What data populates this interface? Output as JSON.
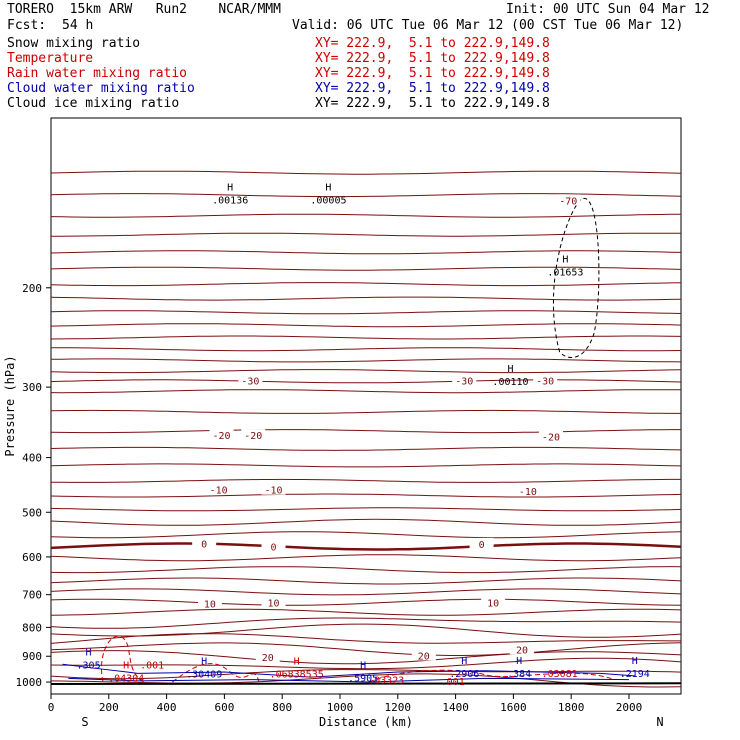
{
  "header": {
    "model": "TORERO  15km ARW   Run2    NCAR/MMM",
    "init": "Init: 00 UTC Sun 04 Mar 12",
    "fcst_label": "Fcst:",
    "fcst_value": "54 h",
    "valid": "Valid: 06 UTC Tue 06 Mar 12 (00 CST Tue 06 Mar 12)"
  },
  "fields": [
    {
      "name": "Snow mixing ratio",
      "xy": "XY= 222.9,  5.1 to 222.9,149.8",
      "color": "#000000"
    },
    {
      "name": "Temperature",
      "xy": "XY= 222.9,  5.1 to 222.9,149.8",
      "color": "#cc0000"
    },
    {
      "name": "Rain water mixing ratio",
      "xy": "XY= 222.9,  5.1 to 222.9,149.8",
      "color": "#cc0000"
    },
    {
      "name": "Cloud water mixing ratio",
      "xy": "XY= 222.9,  5.1 to 222.9,149.8",
      "color": "#0000aa"
    },
    {
      "name": "Cloud ice mixing ratio",
      "xy": "XY= 222.9,  5.1 to 222.9,149.8",
      "color": "#000000"
    }
  ],
  "chart_data": {
    "type": "line",
    "xlabel": "Distance (km)",
    "ylabel": "Pressure (hPa)",
    "xlim": [
      0,
      2180
    ],
    "ylim": [
      1050,
      100
    ],
    "y_scale": "log",
    "x_ticks": [
      0,
      200,
      400,
      600,
      800,
      1000,
      1200,
      1400,
      1600,
      1800,
      2000
    ],
    "y_ticks": [
      200,
      300,
      400,
      500,
      600,
      700,
      800,
      900,
      1000
    ],
    "endpoints": {
      "left": "S",
      "right": "N"
    },
    "temperature_contours_c": [
      -70,
      -30,
      -20,
      -10,
      0,
      10,
      20
    ],
    "temperature_labels": [
      {
        "text": "-70",
        "x": 1790,
        "p": 140
      },
      {
        "text": "-30",
        "x": 690,
        "p": 292
      },
      {
        "text": "-30",
        "x": 1430,
        "p": 292
      },
      {
        "text": "-30",
        "x": 1710,
        "p": 292
      },
      {
        "text": "-20",
        "x": 590,
        "p": 365
      },
      {
        "text": "-20",
        "x": 700,
        "p": 365
      },
      {
        "text": "-20",
        "x": 1730,
        "p": 367
      },
      {
        "text": "-10",
        "x": 580,
        "p": 456
      },
      {
        "text": "-10",
        "x": 770,
        "p": 456
      },
      {
        "text": "-10",
        "x": 1650,
        "p": 458
      },
      {
        "text": "0",
        "x": 530,
        "p": 568
      },
      {
        "text": "0",
        "x": 770,
        "p": 575
      },
      {
        "text": "0",
        "x": 1490,
        "p": 569
      },
      {
        "text": "10",
        "x": 550,
        "p": 726
      },
      {
        "text": "10",
        "x": 770,
        "p": 722
      },
      {
        "text": "10",
        "x": 1530,
        "p": 723
      },
      {
        "text": "20",
        "x": 750,
        "p": 903
      },
      {
        "text": "20",
        "x": 1290,
        "p": 897
      },
      {
        "text": "20",
        "x": 1630,
        "p": 875
      }
    ],
    "maxima_labels": [
      {
        "text": "H",
        "value": ".00136",
        "x": 620,
        "p": 140,
        "color": "#000000"
      },
      {
        "text": "H",
        "value": ".00005",
        "x": 960,
        "p": 140,
        "color": "#000000"
      },
      {
        "text": "H",
        "value": ".01653",
        "x": 1780,
        "p": 188,
        "color": "#000000"
      },
      {
        "text": "H",
        "value": ".00110",
        "x": 1590,
        "p": 294,
        "color": "#000000"
      },
      {
        "text": "H",
        "value": ".305",
        "x": 130,
        "p": 935,
        "color": "#0000aa"
      },
      {
        "text": "",
        "value": ".001",
        "x": 350,
        "p": 935,
        "color": "#cc0000"
      },
      {
        "text": "H",
        "value": ".04304",
        "x": 260,
        "p": 985,
        "color": "#cc0000"
      },
      {
        "text": "H",
        "value": ".30409",
        "x": 530,
        "p": 970,
        "color": "#0000aa"
      },
      {
        "text": "H",
        "value": ".06838535",
        "x": 850,
        "p": 970,
        "color": "#cc0000"
      },
      {
        "text": "H",
        "value": ".5905",
        "x": 1080,
        "p": 985,
        "color": "#0000aa"
      },
      {
        "text": "",
        "value": ".03323",
        "x": 1160,
        "p": 993,
        "color": "#cc0000"
      },
      {
        "text": "H",
        "value": ".2906",
        "x": 1430,
        "p": 968,
        "color": "#0000aa"
      },
      {
        "text": "H",
        "value": ".384",
        "x": 1620,
        "p": 968,
        "color": "#0000aa"
      },
      {
        "text": "",
        "value": ".03081",
        "x": 1760,
        "p": 968,
        "color": "#cc0000"
      },
      {
        "text": "H",
        "value": ".2194",
        "x": 2020,
        "p": 968,
        "color": "#0000aa"
      },
      {
        "text": "",
        "value": ".001",
        "x": 1390,
        "p": 1000,
        "color": "#cc0000"
      }
    ]
  }
}
